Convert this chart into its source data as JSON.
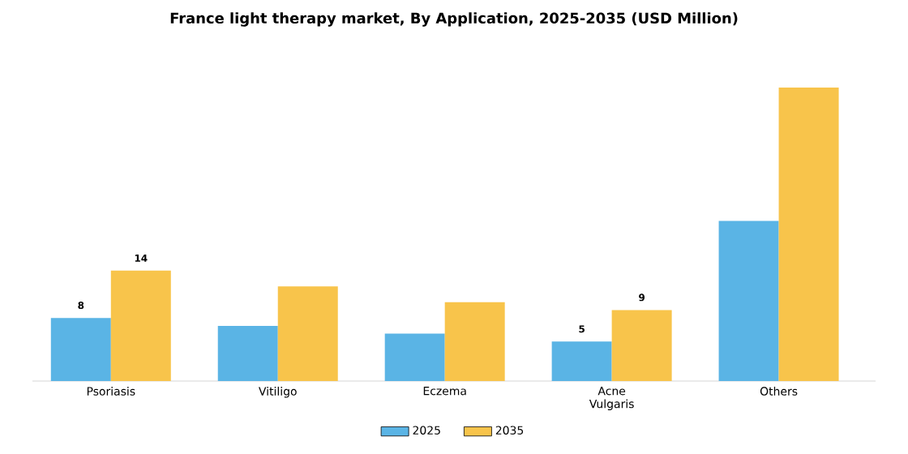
{
  "chart_data": {
    "type": "bar",
    "title": "France light therapy market, By Application, 2025-2035 (USD Million)",
    "categories": [
      "Psoriasis",
      "Vitiligo",
      "Eczema",
      "Acne Vulgaris",
      "Others"
    ],
    "series": [
      {
        "name": "2025",
        "color": "#5ab4e5",
        "values": [
          8,
          7,
          6,
          5,
          20.3
        ],
        "value_labels": [
          "8",
          null,
          null,
          "5",
          null
        ]
      },
      {
        "name": "2035",
        "color": "#f8c44b",
        "values": [
          14,
          12,
          10,
          9,
          37.2
        ],
        "value_labels": [
          "14",
          null,
          null,
          "9",
          null
        ]
      }
    ],
    "legend": "bottom"
  }
}
